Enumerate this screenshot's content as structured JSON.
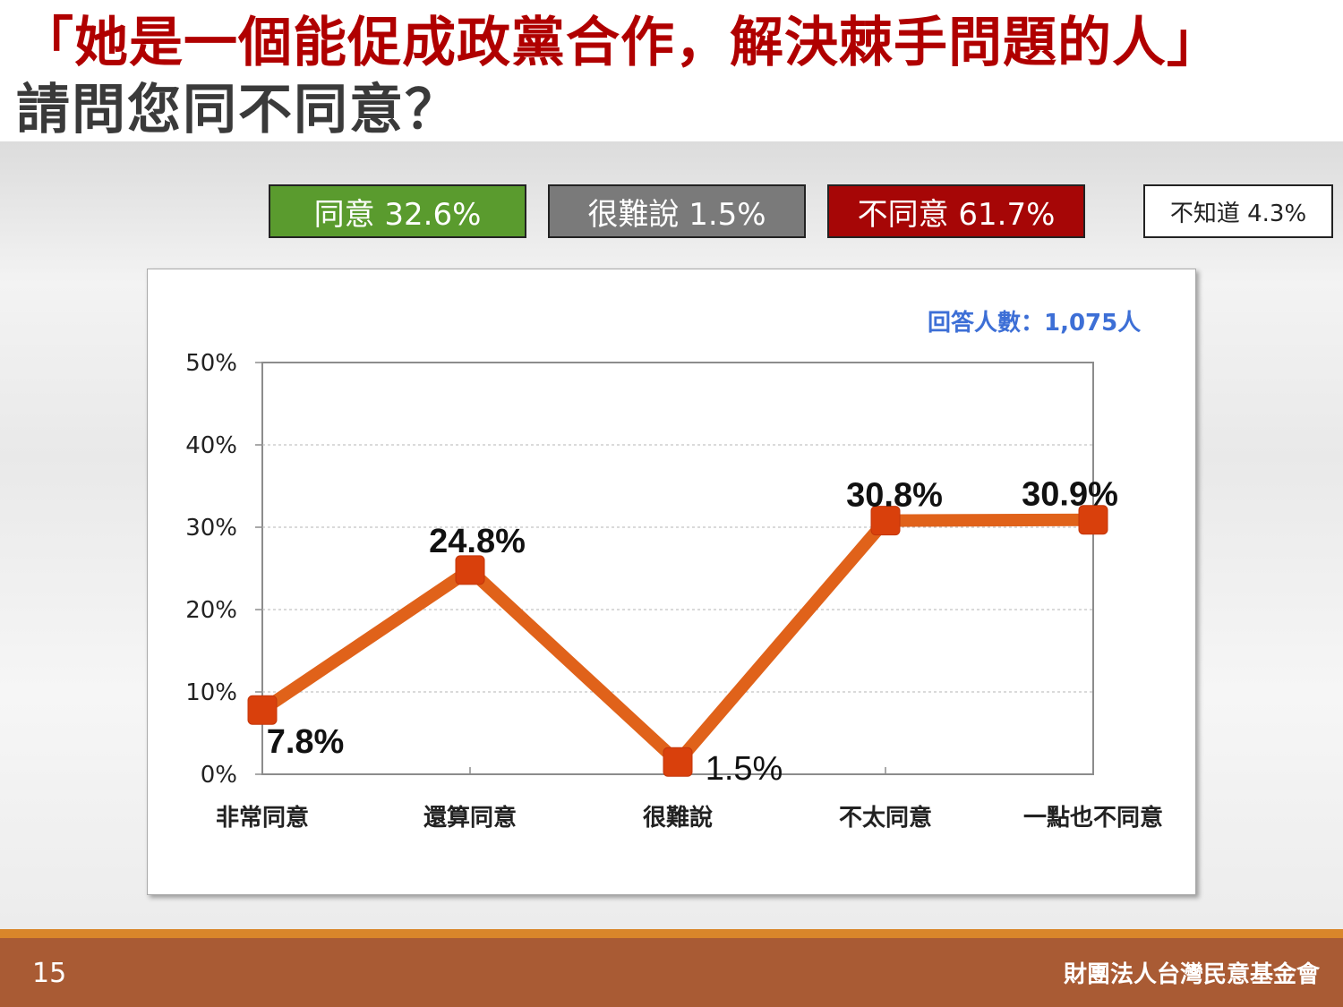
{
  "slide": {
    "title_line1": "「她是一個能促成政黨合作，解決棘手問題的人」",
    "title_line2": "請問您同不同意？",
    "page_number": "15",
    "organization": "財團法人台灣民意基金會"
  },
  "summary": {
    "agree": "同意 32.6%",
    "neutral": "很難說 1.5%",
    "disagree": "不同意 61.7%",
    "unknown": "不知道 4.3%"
  },
  "colors": {
    "agree": "#5a9b2e",
    "neutral": "#7a7a7a",
    "disagree": "#a60606",
    "line": "#e0621a",
    "marker": "#d9400c",
    "title": "#b00000",
    "footer": "#a95b34"
  },
  "chart_data": {
    "type": "line",
    "title": "",
    "xlabel": "",
    "ylabel": "",
    "respondents_note": "回答人數：1,075人",
    "categories": [
      "非常同意",
      "還算同意",
      "很難說",
      "不太同意",
      "一點也不同意"
    ],
    "values": [
      7.8,
      24.8,
      1.5,
      30.8,
      30.9
    ],
    "data_labels": [
      "7.8%",
      "24.8%",
      "1.5%",
      "30.8%",
      "30.9%"
    ],
    "ylim": [
      0,
      50
    ],
    "yticks": [
      0,
      10,
      20,
      30,
      40,
      50
    ],
    "ytick_labels": [
      "0%",
      "10%",
      "20%",
      "30%",
      "40%",
      "50%"
    ],
    "grid": true,
    "legend": "none"
  }
}
